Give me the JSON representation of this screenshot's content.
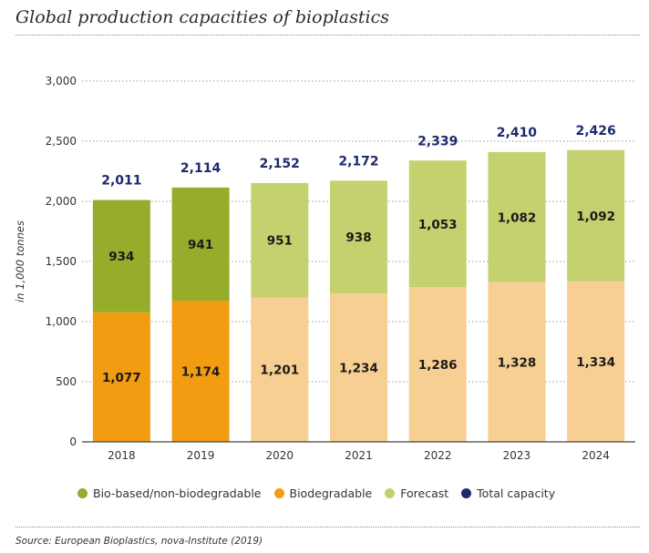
{
  "title": "Global production capacities of bioplastics",
  "source": "Source: European Bioplastics, nova-Institute (2019)",
  "colors": {
    "bio_based": "#95ad2b",
    "biodegradable": "#f29c11",
    "forecast_bio_based": "#c5d06e",
    "forecast_biodegradable": "#f8cf92",
    "total": "#1f2a6d"
  },
  "legend": [
    {
      "label": "Bio-based/non-biodegradable",
      "color": "#95ad2b"
    },
    {
      "label": "Biodegradable",
      "color": "#f29c11"
    },
    {
      "label": "Forecast",
      "color": "#c5d06e"
    },
    {
      "label": "Total capacity",
      "color": "#1f2a6d"
    }
  ],
  "chart_data": {
    "type": "bar",
    "stacked": true,
    "title": "Global production capacities of bioplastics",
    "ylabel": "in 1,000 tonnes",
    "xlabel": "",
    "ylim": [
      0,
      3000
    ],
    "yticks": [
      0,
      500,
      1000,
      1500,
      2000,
      2500,
      3000
    ],
    "ytick_labels": [
      "0",
      "500",
      "1,000",
      "1,500",
      "2,000",
      "2,500",
      "3,000"
    ],
    "grid": "horizontal dotted",
    "legend_position": "bottom",
    "categories": [
      "2018",
      "2019",
      "2020",
      "2021",
      "2022",
      "2023",
      "2024"
    ],
    "forecast_from_index": 2,
    "series": [
      {
        "name": "Biodegradable",
        "values": [
          1077,
          1174,
          1201,
          1234,
          1286,
          1328,
          1334
        ],
        "labels": [
          "1,077",
          "1,174",
          "1,201",
          "1,234",
          "1,286",
          "1,328",
          "1,334"
        ]
      },
      {
        "name": "Bio-based/non-biodegradable",
        "values": [
          934,
          941,
          951,
          938,
          1053,
          1082,
          1092
        ],
        "labels": [
          "934",
          "941",
          "951",
          "938",
          "1,053",
          "1,082",
          "1,092"
        ]
      }
    ],
    "totals": {
      "name": "Total capacity",
      "values": [
        2011,
        2114,
        2152,
        2172,
        2339,
        2410,
        2426
      ],
      "labels": [
        "2,011",
        "2,114",
        "2,152",
        "2,172",
        "2,339",
        "2,410",
        "2,426"
      ]
    }
  }
}
